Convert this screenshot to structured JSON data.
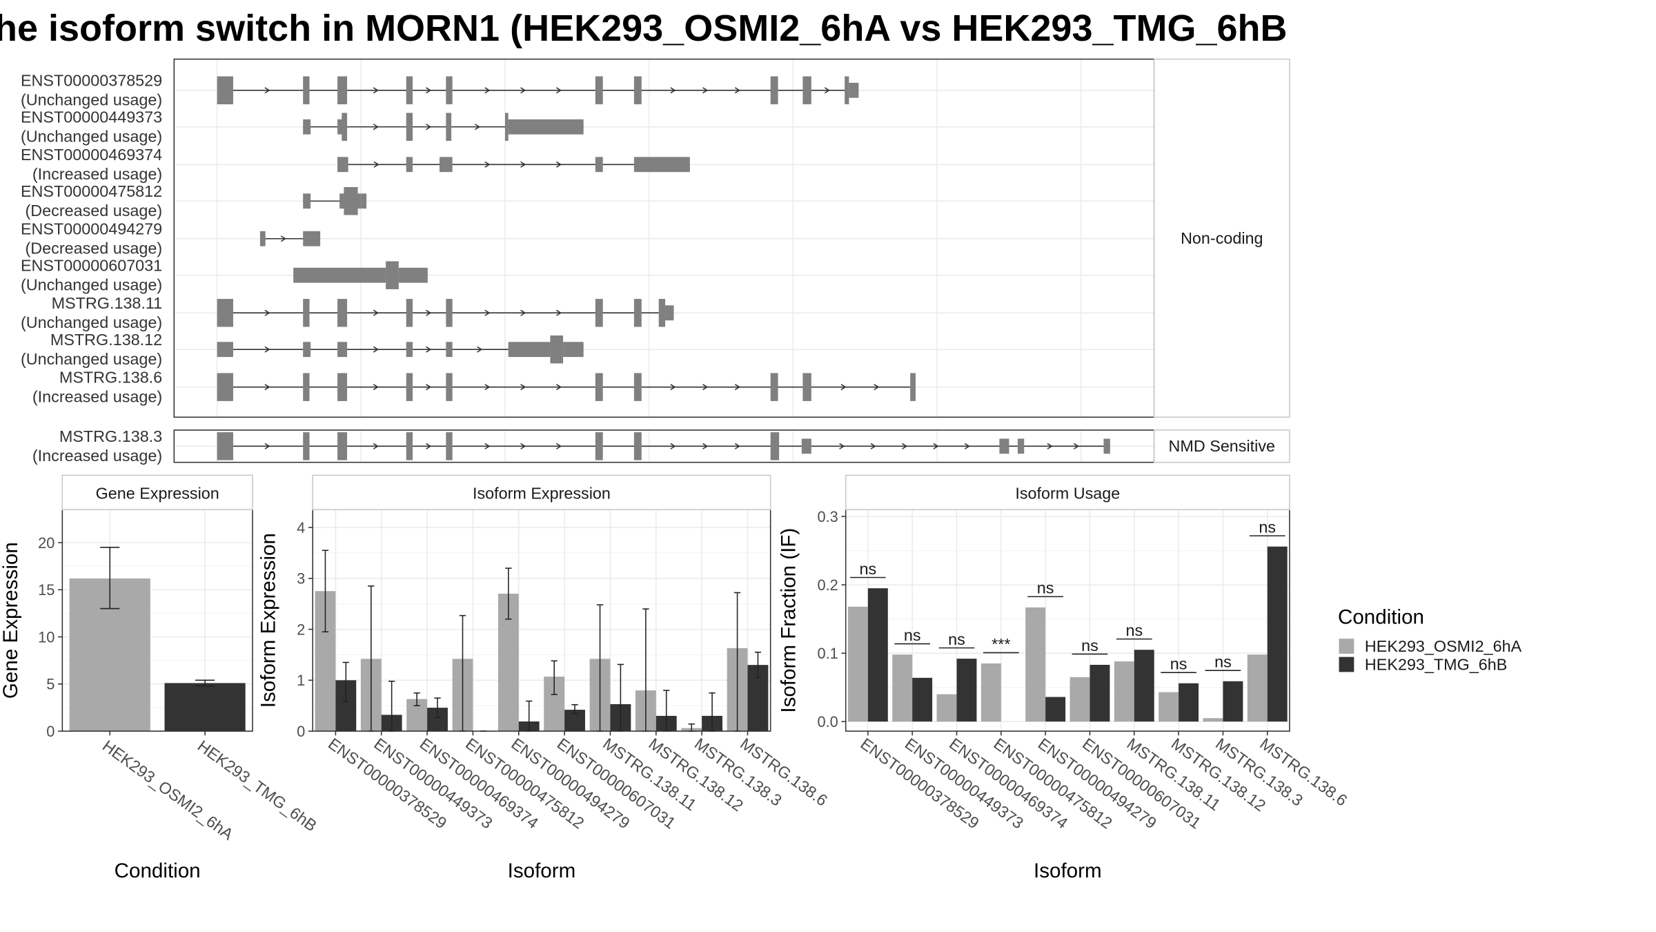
{
  "title": "he isoform switch in MORN1 (HEK293_OSMI2_6hA vs HEK293_TMG_6hB",
  "colors": {
    "condA": "#A9A9A9",
    "condB": "#333333",
    "exon": "#808080",
    "grid": "#EBEBEB",
    "border": "#333333"
  },
  "chart_data": [
    {
      "type": "other",
      "description_type": "transcript structure",
      "panel_labels": [
        "Non-coding",
        "NMD Sensitive"
      ],
      "transcripts": [
        {
          "id": "ENST00000378529",
          "label": "(Unchanged usage)",
          "group": "Non-coding"
        },
        {
          "id": "ENST00000449373",
          "label": "(Unchanged usage)",
          "group": "Non-coding"
        },
        {
          "id": "ENST00000469374",
          "label": "(Increased usage)",
          "group": "Non-coding"
        },
        {
          "id": "ENST00000475812",
          "label": "(Decreased usage)",
          "group": "Non-coding"
        },
        {
          "id": "ENST00000494279",
          "label": "(Decreased usage)",
          "group": "Non-coding"
        },
        {
          "id": "ENST00000607031",
          "label": "(Unchanged usage)",
          "group": "Non-coding"
        },
        {
          "id": "MSTRG.138.11",
          "label": "(Unchanged usage)",
          "group": "Non-coding"
        },
        {
          "id": "MSTRG.138.12",
          "label": "(Unchanged usage)",
          "group": "Non-coding"
        },
        {
          "id": "MSTRG.138.6",
          "label": "(Increased usage)",
          "group": "Non-coding"
        },
        {
          "id": "MSTRG.138.3",
          "label": "(Increased usage)",
          "group": "NMD Sensitive"
        }
      ]
    },
    {
      "type": "bar",
      "title": "Gene Expression",
      "xlabel": "Condition",
      "ylabel": "Gene Expression",
      "categories": [
        "HEK293_OSMI2_6hA",
        "HEK293_TMG_6hB"
      ],
      "values": [
        16.2,
        5.1
      ],
      "errors_low": [
        13.0,
        4.8
      ],
      "errors_high": [
        19.5,
        5.4
      ],
      "ylim": [
        0,
        23.5
      ],
      "yticks": [
        0,
        5,
        10,
        15,
        20
      ]
    },
    {
      "type": "bar",
      "title": "Isoform Expression",
      "xlabel": "Isoform",
      "ylabel": "Isoform Expression",
      "categories": [
        "ENST00000378529",
        "ENST00000449373",
        "ENST00000469374",
        "ENST00000475812",
        "ENST00000494279",
        "ENST00000607031",
        "MSTRG.138.11",
        "MSTRG.138.12",
        "MSTRG.138.3",
        "MSTRG.138.6"
      ],
      "series": [
        {
          "name": "HEK293_OSMI2_6hA",
          "values": [
            2.75,
            1.42,
            0.63,
            1.42,
            2.7,
            1.07,
            1.42,
            0.8,
            0.06,
            1.63
          ],
          "err_low": [
            1.95,
            0.0,
            0.5,
            0.0,
            2.2,
            0.72,
            0.0,
            0.0,
            0.0,
            0.0
          ],
          "err_high": [
            3.55,
            2.85,
            0.75,
            2.27,
            3.2,
            1.38,
            2.48,
            2.4,
            0.14,
            2.72
          ]
        },
        {
          "name": "HEK293_TMG_6hB",
          "values": [
            1.0,
            0.32,
            0.46,
            0.0,
            0.19,
            0.42,
            0.53,
            0.3,
            0.3,
            1.3
          ],
          "err_low": [
            0.58,
            0.0,
            0.27,
            0.0,
            0.0,
            0.34,
            0.0,
            0.0,
            0.0,
            1.05
          ],
          "err_high": [
            1.35,
            0.98,
            0.65,
            0.0,
            0.59,
            0.52,
            1.31,
            0.8,
            0.75,
            1.55
          ]
        }
      ],
      "ylim": [
        0,
        4.35
      ],
      "yticks": [
        0,
        1,
        2,
        3,
        4
      ]
    },
    {
      "type": "bar",
      "title": "Isoform Usage",
      "xlabel": "Isoform",
      "ylabel": "Isoform Fraction (IF)",
      "categories": [
        "ENST00000378529",
        "ENST00000449373",
        "ENST00000469374",
        "ENST00000475812",
        "ENST00000494279",
        "ENST00000607031",
        "MSTRG.138.11",
        "MSTRG.138.12",
        "MSTRG.138.3",
        "MSTRG.138.6"
      ],
      "series": [
        {
          "name": "HEK293_OSMI2_6hA",
          "values": [
            0.168,
            0.098,
            0.04,
            0.085,
            0.167,
            0.065,
            0.088,
            0.043,
            0.005,
            0.098
          ]
        },
        {
          "name": "HEK293_TMG_6hB",
          "values": [
            0.195,
            0.064,
            0.092,
            0.0,
            0.036,
            0.083,
            0.105,
            0.056,
            0.059,
            0.256
          ]
        }
      ],
      "significance": [
        "ns",
        "ns",
        "ns",
        "***",
        "ns",
        "ns",
        "ns",
        "ns",
        "ns",
        "ns"
      ],
      "ylim": [
        -0.014,
        0.31
      ],
      "yticks": [
        0.0,
        0.1,
        0.2,
        0.3
      ],
      "ytick_labels": [
        "0.0",
        "0.1",
        "0.2",
        "0.3"
      ]
    }
  ],
  "legend": {
    "title": "Condition",
    "items": [
      "HEK293_OSMI2_6hA",
      "HEK293_TMG_6hB"
    ],
    "position": "right"
  }
}
